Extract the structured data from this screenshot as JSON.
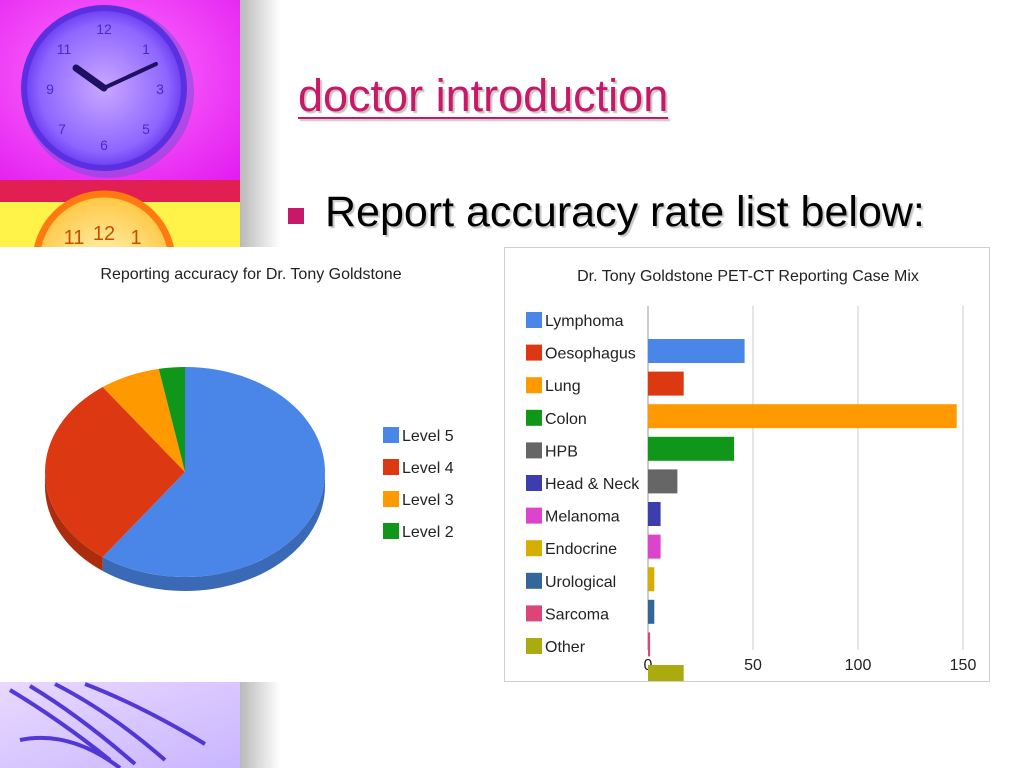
{
  "slide": {
    "title": "doctor introduction",
    "bullet": "Report accuracy rate list below:"
  },
  "colors": {
    "title": "#c8186a",
    "bullet_marker": "#c8186a"
  },
  "chart_data": [
    {
      "type": "pie",
      "title": "Reporting accuracy for Dr. Tony Goldstone",
      "labels": [
        "Level 5",
        "Level 4",
        "Level 3",
        "Level 2"
      ],
      "values": [
        60,
        30,
        7,
        3
      ],
      "colors": [
        "#4a86e8",
        "#dc3912",
        "#ff9900",
        "#109618"
      ],
      "legend_position": "right",
      "style": "3d"
    },
    {
      "type": "bar",
      "orientation": "horizontal",
      "title": "Dr. Tony Goldstone PET-CT Reporting Case Mix",
      "categories": [
        "Lymphoma",
        "Oesophagus",
        "Lung",
        "Colon",
        "HPB",
        "Head & Neck",
        "Melanoma",
        "Endocrine",
        "Urological",
        "Sarcoma",
        "Other"
      ],
      "values": [
        46,
        17,
        147,
        41,
        14,
        6,
        6,
        3,
        3,
        1,
        17
      ],
      "colors": [
        "#4a86e8",
        "#dc3912",
        "#ff9900",
        "#109618",
        "#666666",
        "#3b3eac",
        "#dd44cc",
        "#d6ae00",
        "#336699",
        "#dd4477",
        "#aaaa11"
      ],
      "x_ticks": [
        "0",
        "50",
        "100",
        "150"
      ],
      "xlim": [
        0,
        150
      ],
      "grid": true,
      "legend_position": "left"
    }
  ]
}
